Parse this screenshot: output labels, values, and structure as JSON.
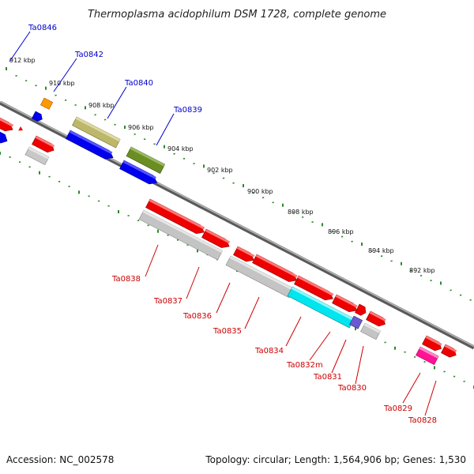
{
  "title": "Thermoplasma acidophilum DSM 1728, complete genome",
  "footer": {
    "accession": "Accession: NC_002578",
    "summary": "Topology: circular; Length: 1,564,906 bp; Genes: 1,530"
  },
  "colors": {
    "plus_label": "#0000cc",
    "minus_label": "#cc0000",
    "backbone": "#808080",
    "ticks": "#2a8a2a"
  },
  "kbp_labels": [
    "912 kbp",
    "910 kbp",
    "908 kbp",
    "906 kbp",
    "904 kbp",
    "902 kbp",
    "900 kbp",
    "898 kbp",
    "896 kbp",
    "894 kbp",
    "892 kbp"
  ],
  "gene_labels_top": [
    "Ta0846",
    "Ta0842",
    "Ta0840",
    "Ta0839"
  ],
  "gene_labels_bottom": [
    "Ta0838",
    "Ta0837",
    "Ta0836",
    "Ta0835",
    "Ta0834",
    "Ta0832m",
    "Ta0831",
    "Ta0830",
    "Ta0829",
    "Ta0828"
  ]
}
